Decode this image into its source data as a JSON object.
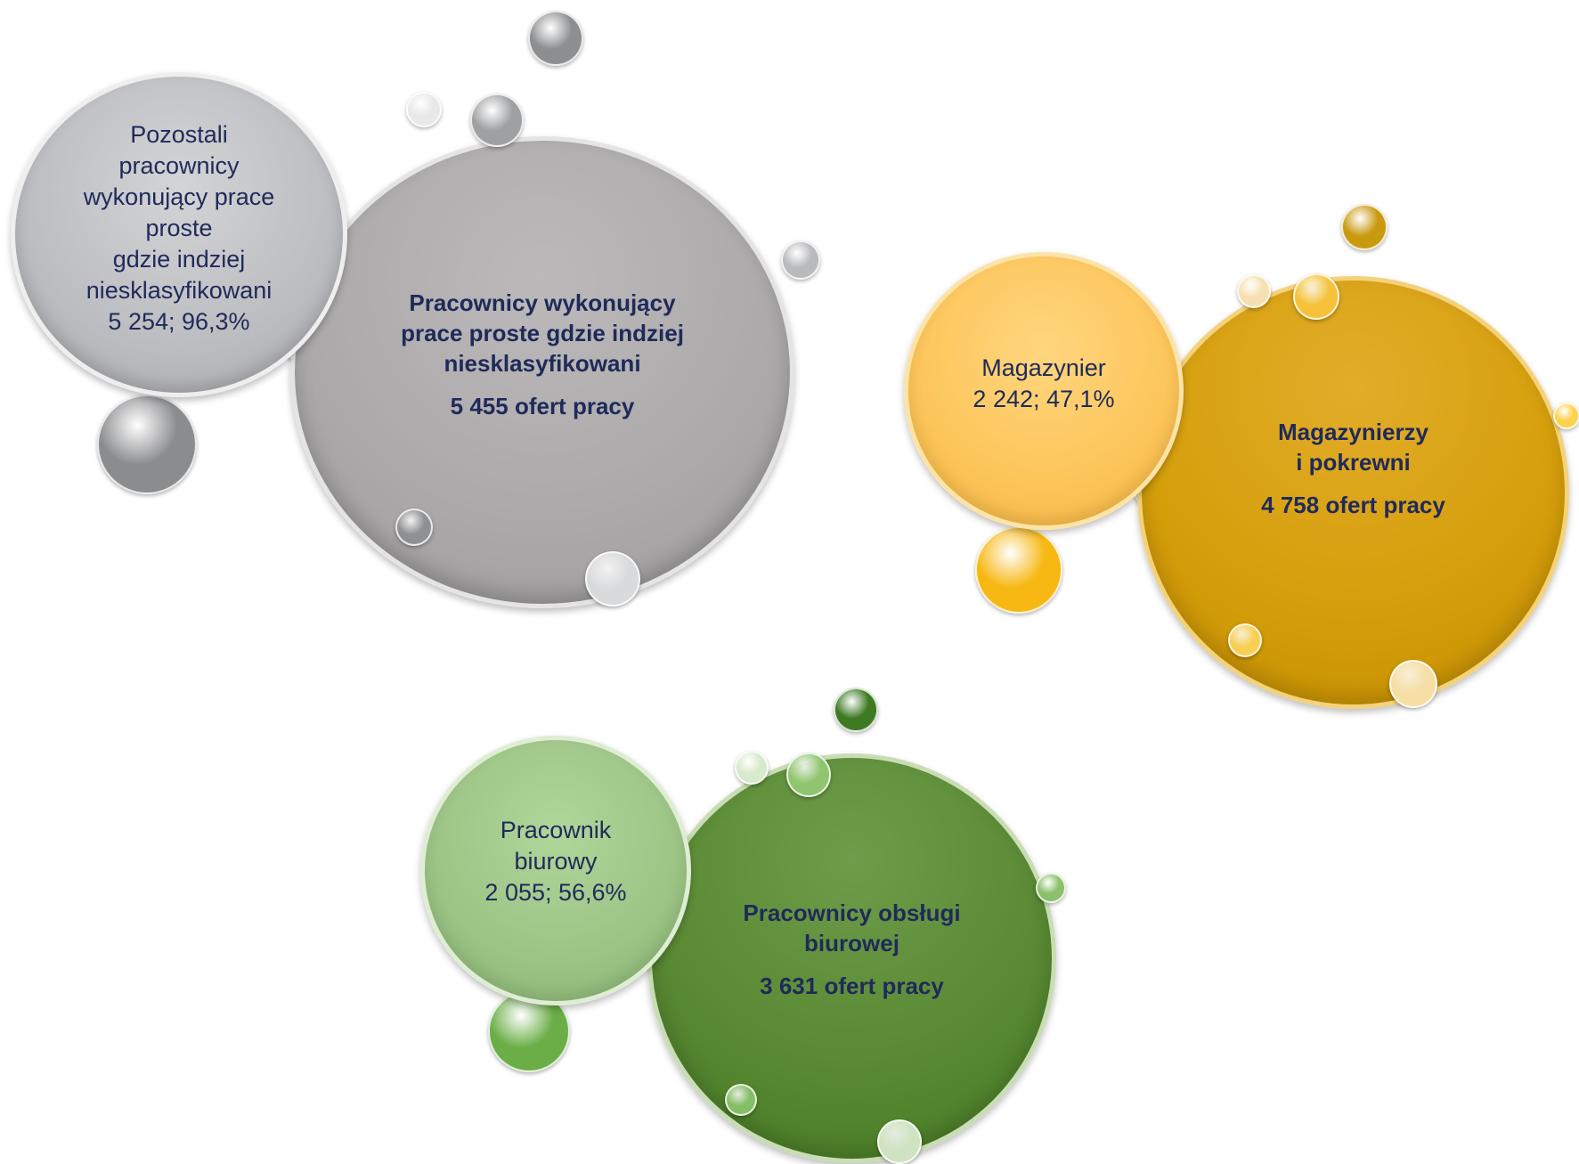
{
  "colors": {
    "text": "#1f2a5a",
    "gray_group": "#acaaaa",
    "gold_group": "#d69f0c",
    "green_group": "#5a8a34"
  },
  "groups": [
    {
      "id": "gray",
      "main": {
        "label_lines": [
          "Pracownicy wykonujący",
          "prace proste gdzie indziej",
          "niesklasyfikowani"
        ],
        "count": "5 455 ofert pracy"
      },
      "sub": {
        "label_lines": [
          "Pozostali",
          "pracownicy",
          "wykonujący prace",
          "proste",
          "gdzie indziej",
          "niesklasyfikowani",
          "5 254; 96,3%"
        ]
      }
    },
    {
      "id": "gold",
      "main": {
        "label_lines": [
          "Magazynierzy",
          "i pokrewni"
        ],
        "count": "4 758 ofert pracy"
      },
      "sub": {
        "label_lines": [
          "Magazynier",
          "2 242; 47,1%"
        ]
      }
    },
    {
      "id": "green",
      "main": {
        "label_lines": [
          "Pracownicy obsługi",
          "biurowej"
        ],
        "count": "3 631 ofert pracy"
      },
      "sub": {
        "label_lines": [
          "Pracownik",
          "biurowy",
          "2 055; 56,6%"
        ]
      }
    }
  ]
}
